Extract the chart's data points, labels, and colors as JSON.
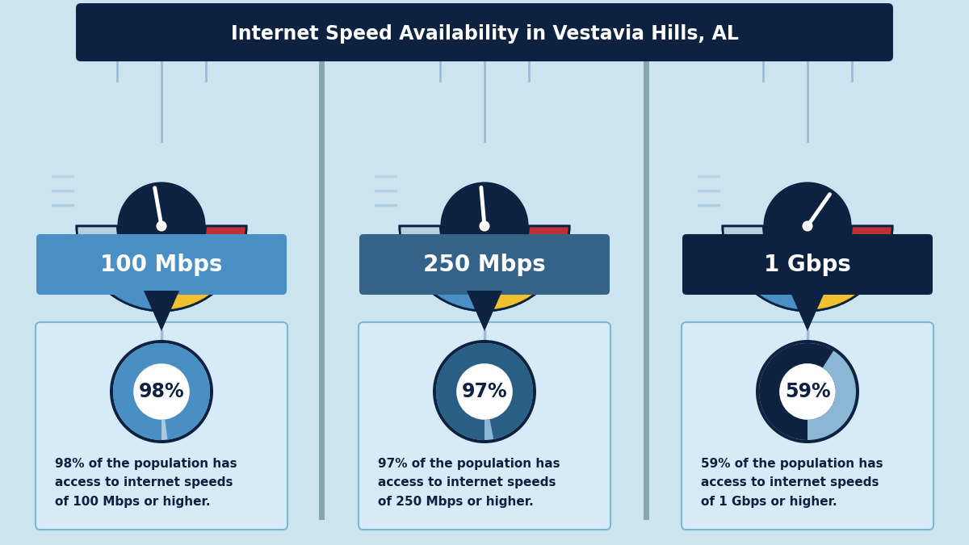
{
  "title": "Internet Speed Availability in Vestavia Hills, AL",
  "title_bg": "#0d2240",
  "title_color": "#ffffff",
  "bg_color": "#cce4f0",
  "speeds": [
    "100 Mbps",
    "250 Mbps",
    "1 Gbps"
  ],
  "percentages": [
    98,
    97,
    59
  ],
  "descriptions": [
    "98% of the population has\naccess to internet speeds\nof 100 Mbps or higher.",
    "97% of the population has\naccess to internet speeds\nof 250 Mbps or higher.",
    "59% of the population has\naccess to internet speeds\nof 1 Gbps or higher."
  ],
  "speed_label_bg": [
    "#4a90c4",
    "#34638a",
    "#0d2240"
  ],
  "speed_label_color": "#ffffff",
  "gauge_dark": "#0d2240",
  "gauge_seg_colors": [
    "#b8cfe0",
    "#4a90c4",
    "#f0c030",
    "#c0303a"
  ],
  "gauge_border": "#0d2240",
  "donut_fill": [
    "#4a8fc4",
    "#2a5f85",
    "#0d2240"
  ],
  "donut_bg": [
    "#aac8e0",
    "#8ab8d4",
    "#8ab8d4"
  ],
  "donut_border": "#0d2240",
  "connector_line": "#9abcd4",
  "connector_arrow": "#0d2240",
  "divider_color": "#5a7a8a",
  "card_bg": "#d6eaf8",
  "card_border": "#7ab8d4",
  "text_color": "#0d2240",
  "needle_angles": [
    100,
    95,
    55
  ],
  "speed_line_color": "#aac8dc"
}
